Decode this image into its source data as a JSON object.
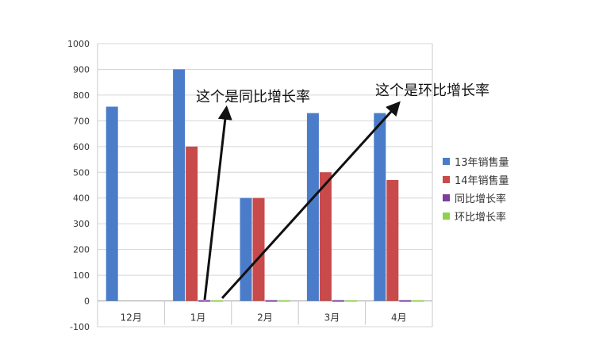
{
  "chart_data": {
    "type": "bar",
    "categories": [
      "12月",
      "1月",
      "2月",
      "3月",
      "4月"
    ],
    "series": [
      {
        "name": "13年销售量",
        "color": "#4a7cc9",
        "values": [
          755,
          900,
          400,
          730,
          730
        ]
      },
      {
        "name": "14年销售量",
        "color": "#c94a4a",
        "values": [
          null,
          600,
          400,
          500,
          470
        ]
      },
      {
        "name": "同比增长率",
        "color": "#7b3fa0",
        "values": [
          null,
          0,
          0,
          0,
          0
        ]
      },
      {
        "name": "环比增长率",
        "color": "#8fd14f",
        "values": [
          null,
          0,
          0,
          0,
          0
        ]
      }
    ],
    "ylim": [
      -100,
      1000
    ],
    "yticks": [
      -100,
      0,
      100,
      200,
      300,
      400,
      500,
      600,
      700,
      800,
      900,
      1000
    ],
    "grid": true,
    "legend_position": "right"
  },
  "annotations": {
    "yoy": "这个是同比增长率",
    "mom": "这个是环比增长率"
  }
}
